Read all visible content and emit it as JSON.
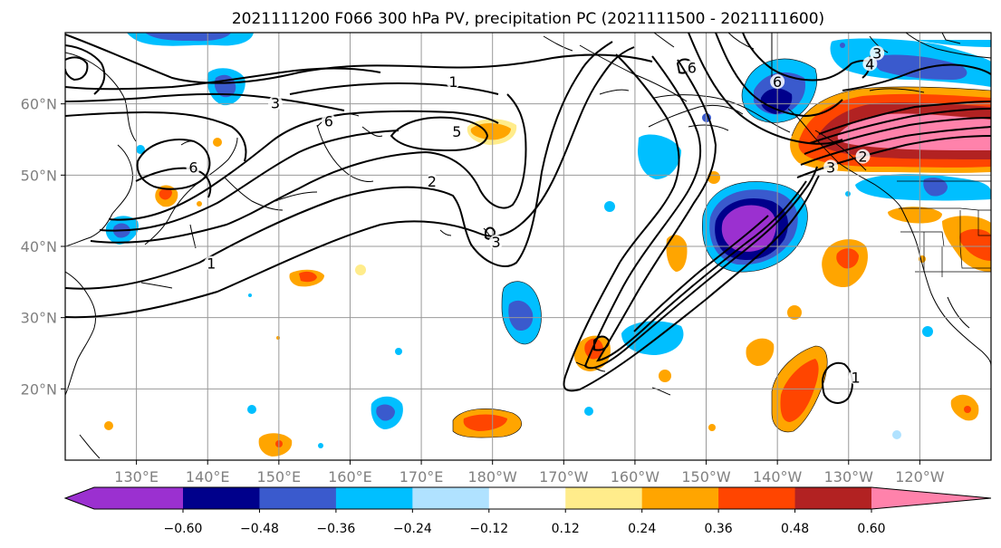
{
  "title": "2021111200 F066 300 hPa PV, precipitation PC (2021111500 - 2021111600)",
  "lon_ticks": [
    "130°E",
    "140°E",
    "150°E",
    "160°E",
    "170°E",
    "180°W",
    "170°W",
    "160°W",
    "150°W",
    "140°W",
    "130°W",
    "120°W"
  ],
  "lat_ticks": [
    "20°N",
    "30°N",
    "40°N",
    "50°N",
    "60°N"
  ],
  "colorbar": {
    "colors": [
      "#9b30d0",
      "#00008b",
      "#3a5acd",
      "#00bfff",
      "#b0e2ff",
      "#ffffff",
      "#ffec8b",
      "#ffa500",
      "#ff4500",
      "#b22222",
      "#ff82ab"
    ],
    "ticks": [
      "−0.60",
      "−0.48",
      "−0.36",
      "−0.24",
      "−0.12",
      "0.12",
      "0.24",
      "0.36",
      "0.48",
      "0.60"
    ]
  },
  "contour_labels": [
    {
      "text": "1",
      "lon": 174.5,
      "lat": 62.5
    },
    {
      "text": "3",
      "lon": 149.5,
      "lat": 59.5
    },
    {
      "text": "5",
      "lon": 175.0,
      "lat": 55.5
    },
    {
      "text": "6",
      "lon": 138.0,
      "lat": 50.5
    },
    {
      "text": "2",
      "lon": 171.5,
      "lat": 48.5
    },
    {
      "text": "3",
      "lon": 180.5,
      "lat": 40.0
    },
    {
      "text": "1",
      "lon": 140.5,
      "lat": 37.0
    },
    {
      "text": "6",
      "lon": 157.0,
      "lat": 57.0
    },
    {
      "text": "6",
      "lon": -152.0,
      "lat": 64.5
    },
    {
      "text": "6",
      "lon": -140.0,
      "lat": 62.5
    },
    {
      "text": "4",
      "lon": -127.0,
      "lat": 65.0
    },
    {
      "text": "3",
      "lon": -126.0,
      "lat": 66.5
    },
    {
      "text": "3",
      "lon": -132.5,
      "lat": 50.5
    },
    {
      "text": "2",
      "lon": -128.0,
      "lat": 52.0
    },
    {
      "text": "1",
      "lon": -129.0,
      "lat": 21.0
    }
  ]
}
